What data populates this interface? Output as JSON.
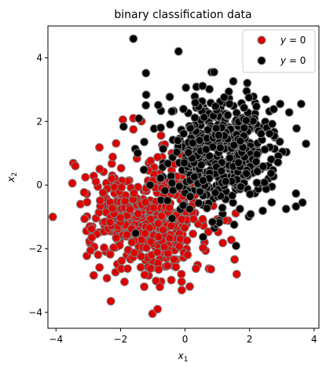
{
  "chart_data": {
    "type": "scatter",
    "title": "binary classification data",
    "xlabel_base": "x",
    "xlabel_sub": "1",
    "ylabel_base": "x",
    "ylabel_sub": "2",
    "xlim": [
      -4.25,
      4.15
    ],
    "ylim": [
      -4.5,
      5.0
    ],
    "xticks": [
      -4,
      -2,
      0,
      2,
      4
    ],
    "yticks": [
      -4,
      -2,
      0,
      2,
      4
    ],
    "grid": false,
    "legend_placement": "top-right",
    "point_edge_color": "#808080",
    "series": [
      {
        "name": "y = 0",
        "legend_var": "y",
        "legend_val": "= 0",
        "color": "#dd0000",
        "seed": 7,
        "count": 500,
        "center": [
          -1.15,
          -1.05
        ],
        "spread": [
          0.9,
          0.95
        ],
        "notable_points": [
          [
            -1.6,
            2.1
          ],
          [
            -0.85,
            -3.9
          ],
          [
            -2.3,
            -3.65
          ],
          [
            -4.1,
            -1.0
          ],
          [
            -3.4,
            0.6
          ],
          [
            -1.6,
            1.75
          ],
          [
            -0.1,
            -3.3
          ],
          [
            1.6,
            -2.8
          ]
        ]
      },
      {
        "name": "y = 0",
        "legend_var": "y",
        "legend_val": "= 0",
        "color": "#000000",
        "seed": 13,
        "count": 500,
        "center": [
          1.0,
          1.0
        ],
        "spread": [
          0.95,
          0.95
        ],
        "notable_points": [
          [
            -1.6,
            4.6
          ],
          [
            -0.2,
            4.2
          ],
          [
            0.9,
            3.55
          ],
          [
            3.6,
            2.55
          ],
          [
            2.95,
            2.55
          ],
          [
            3.75,
            1.3
          ],
          [
            -0.4,
            -1.05
          ],
          [
            1.7,
            -0.75
          ]
        ]
      }
    ]
  }
}
